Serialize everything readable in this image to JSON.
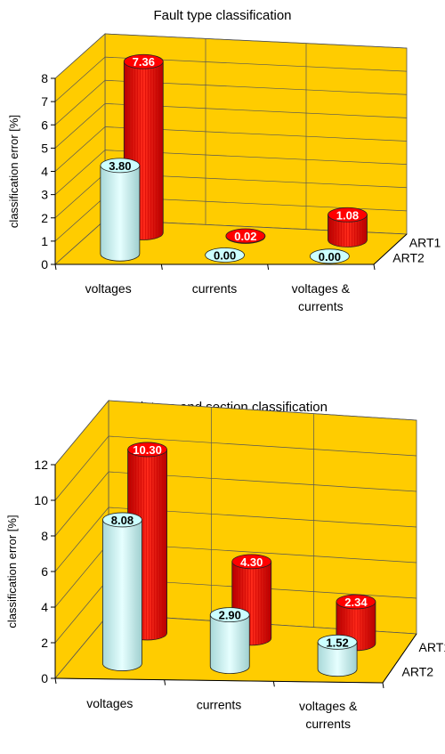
{
  "chart_data": [
    {
      "type": "bar",
      "title": "Fault type classification",
      "ylabel": "classification error [%]",
      "ylim": [
        0,
        8
      ],
      "yticks": [
        "0",
        "1",
        "2",
        "3",
        "4",
        "5",
        "6",
        "7",
        "8"
      ],
      "categories": [
        "voltages",
        "currents",
        "voltages & currents"
      ],
      "category_lines": [
        [
          "voltages"
        ],
        [
          "currents"
        ],
        [
          "voltages &",
          "currents"
        ]
      ],
      "series": [
        {
          "name": "ART1",
          "values": [
            7.36,
            0.02,
            1.08
          ],
          "labels": [
            "7.36",
            "0.02",
            "1.08"
          ],
          "color": "#ff0000"
        },
        {
          "name": "ART2",
          "values": [
            3.8,
            0.0,
            0.0
          ],
          "labels": [
            "3.80",
            "0.00",
            "0.00"
          ],
          "color": "#ccffff"
        }
      ],
      "wall_color": "#ffcc00",
      "grid": true
    },
    {
      "type": "bar",
      "title": "Fault type and section classification",
      "ylabel": "classification error [%]",
      "ylim": [
        0,
        12
      ],
      "yticks": [
        "0",
        "2",
        "4",
        "6",
        "8",
        "10",
        "12"
      ],
      "categories": [
        "voltages",
        "currents",
        "voltages & currents"
      ],
      "category_lines": [
        [
          "voltages"
        ],
        [
          "currents"
        ],
        [
          "voltages &",
          "currents"
        ]
      ],
      "series": [
        {
          "name": "ART1",
          "values": [
            10.3,
            4.3,
            2.34
          ],
          "labels": [
            "10.30",
            "4.30",
            "2.34"
          ],
          "color": "#ff0000"
        },
        {
          "name": "ART2",
          "values": [
            8.08,
            2.9,
            1.52
          ],
          "labels": [
            "8.08",
            "2.90",
            "1.52"
          ],
          "color": "#ccffff"
        }
      ],
      "wall_color": "#ffcc00",
      "grid": true
    }
  ]
}
